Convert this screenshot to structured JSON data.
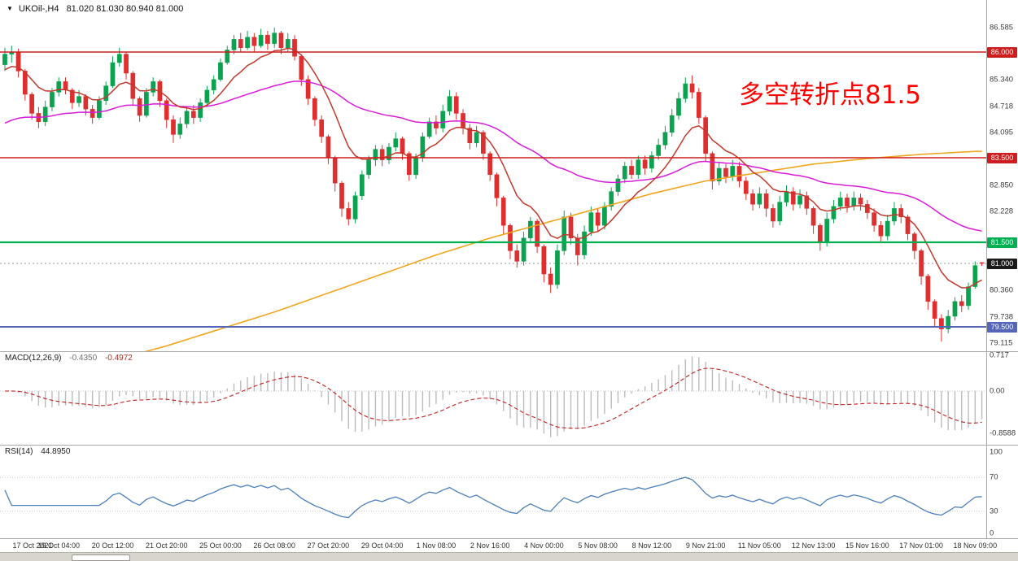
{
  "header": {
    "symbol": "UKOil-,H4",
    "ohlc_text": "81.020 81.030 80.940 81.000"
  },
  "annotation": {
    "text": "多空转折点81.5",
    "color": "#ff0000"
  },
  "axis": {
    "price_labels": [
      "86.585",
      "85.340",
      "84.718",
      "84.095",
      "82.850",
      "82.228",
      "80.360",
      "79.738",
      "79.115"
    ],
    "time_labels": [
      {
        "i": 0,
        "t": "17 Oct 2021"
      },
      {
        "i": 8,
        "t": "19 Oct 04:00"
      },
      {
        "i": 16,
        "t": "20 Oct 12:00"
      },
      {
        "i": 24,
        "t": "21 Oct 20:00"
      },
      {
        "i": 32,
        "t": "25 Oct 00:00"
      },
      {
        "i": 40,
        "t": "26 Oct 08:00"
      },
      {
        "i": 48,
        "t": "27 Oct 20:00"
      },
      {
        "i": 56,
        "t": "29 Oct 04:00"
      },
      {
        "i": 64,
        "t": "1 Nov 08:00"
      },
      {
        "i": 72,
        "t": "2 Nov 16:00"
      },
      {
        "i": 80,
        "t": "4 Nov 00:00"
      },
      {
        "i": 88,
        "t": "5 Nov 08:00"
      },
      {
        "i": 96,
        "t": "8 Nov 12:00"
      },
      {
        "i": 104,
        "t": "9 Nov 21:00"
      },
      {
        "i": 112,
        "t": "11 Nov 05:00"
      },
      {
        "i": 120,
        "t": "12 Nov 13:00"
      },
      {
        "i": 128,
        "t": "15 Nov 16:00"
      },
      {
        "i": 136,
        "t": "17 Nov 01:00"
      },
      {
        "i": 144,
        "t": "18 Nov 09:00"
      }
    ]
  },
  "levels": [
    {
      "label": "86.000",
      "value": 86.0,
      "color": "#cf1d1d",
      "width": 1.6
    },
    {
      "label": "83.500",
      "value": 83.5,
      "color": "#cf1d1d",
      "width": 1.6
    },
    {
      "label": "81.500",
      "value": 81.5,
      "color": "#00b050",
      "width": 2.2
    },
    {
      "label": "79.500",
      "value": 79.5,
      "color": "#5566b8",
      "width": 2.0
    }
  ],
  "current_price": {
    "label": "81.000",
    "value": 81.0,
    "badge_color": "#1a1a1a",
    "line_color": "#999999"
  },
  "chart_data": {
    "type": "candlestick",
    "symbol": "UKOil-",
    "timeframe": "H4",
    "ylim": [
      79.0,
      87.0
    ],
    "grid": false,
    "colors": {
      "up": "#0aa24f",
      "down": "#dd2f2f",
      "ma_fast": "#c0392b",
      "ma_mid": "#d81bd8",
      "ma_slow": "#efa51d",
      "macd_hist": "#bcbcbc",
      "macd_signal": "#c02020",
      "rsi_line": "#4a7ebb"
    },
    "candles": [
      [
        85.7,
        86.1,
        85.55,
        85.95
      ],
      [
        85.95,
        86.15,
        85.75,
        86.0
      ],
      [
        86.0,
        86.08,
        85.4,
        85.55
      ],
      [
        85.55,
        85.6,
        84.85,
        85.0
      ],
      [
        85.0,
        85.05,
        84.4,
        84.55
      ],
      [
        84.55,
        84.7,
        84.2,
        84.35
      ],
      [
        84.35,
        84.85,
        84.25,
        84.7
      ],
      [
        84.7,
        85.15,
        84.6,
        85.05
      ],
      [
        85.05,
        85.4,
        84.95,
        85.3
      ],
      [
        85.3,
        85.4,
        85.0,
        85.1
      ],
      [
        85.1,
        85.15,
        84.65,
        84.8
      ],
      [
        84.8,
        85.1,
        84.7,
        84.95
      ],
      [
        84.95,
        85.0,
        84.5,
        84.65
      ],
      [
        84.65,
        84.75,
        84.3,
        84.45
      ],
      [
        84.45,
        84.95,
        84.4,
        84.85
      ],
      [
        84.85,
        85.3,
        84.75,
        85.2
      ],
      [
        85.2,
        85.9,
        85.15,
        85.75
      ],
      [
        85.75,
        86.1,
        85.65,
        85.95
      ],
      [
        85.95,
        86.0,
        85.35,
        85.5
      ],
      [
        85.5,
        85.55,
        84.75,
        84.9
      ],
      [
        84.9,
        84.95,
        84.35,
        84.5
      ],
      [
        84.5,
        85.15,
        84.45,
        85.05
      ],
      [
        85.05,
        85.4,
        84.95,
        85.3
      ],
      [
        85.3,
        85.35,
        84.7,
        84.85
      ],
      [
        84.85,
        84.9,
        84.2,
        84.4
      ],
      [
        84.4,
        84.5,
        83.85,
        84.05
      ],
      [
        84.05,
        84.45,
        83.95,
        84.3
      ],
      [
        84.3,
        84.7,
        84.2,
        84.6
      ],
      [
        84.6,
        84.75,
        84.3,
        84.45
      ],
      [
        84.45,
        84.9,
        84.35,
        84.8
      ],
      [
        84.8,
        85.2,
        84.7,
        85.1
      ],
      [
        85.1,
        85.45,
        85.0,
        85.35
      ],
      [
        85.35,
        85.85,
        85.3,
        85.75
      ],
      [
        85.75,
        86.15,
        85.7,
        86.05
      ],
      [
        86.05,
        86.4,
        85.95,
        86.3
      ],
      [
        86.3,
        86.45,
        86.0,
        86.1
      ],
      [
        86.1,
        86.5,
        86.05,
        86.35
      ],
      [
        86.35,
        86.45,
        86.0,
        86.15
      ],
      [
        86.15,
        86.55,
        86.1,
        86.4
      ],
      [
        86.4,
        86.5,
        86.05,
        86.2
      ],
      [
        86.2,
        86.58,
        86.1,
        86.45
      ],
      [
        86.45,
        86.5,
        85.95,
        86.1
      ],
      [
        86.1,
        86.45,
        86.0,
        86.3
      ],
      [
        86.3,
        86.4,
        85.8,
        85.9
      ],
      [
        85.9,
        85.95,
        85.2,
        85.35
      ],
      [
        85.35,
        85.45,
        84.75,
        84.9
      ],
      [
        84.9,
        84.95,
        84.25,
        84.4
      ],
      [
        84.4,
        84.5,
        83.85,
        84.0
      ],
      [
        84.0,
        84.05,
        83.35,
        83.5
      ],
      [
        83.5,
        83.55,
        82.7,
        82.9
      ],
      [
        82.9,
        82.95,
        82.1,
        82.3
      ],
      [
        82.3,
        82.45,
        81.9,
        82.05
      ],
      [
        82.05,
        82.7,
        81.95,
        82.6
      ],
      [
        82.6,
        83.2,
        82.5,
        83.1
      ],
      [
        83.1,
        83.55,
        83.0,
        83.45
      ],
      [
        83.45,
        83.8,
        83.3,
        83.7
      ],
      [
        83.7,
        83.8,
        83.3,
        83.45
      ],
      [
        83.45,
        83.85,
        83.35,
        83.75
      ],
      [
        83.75,
        84.1,
        83.65,
        83.95
      ],
      [
        83.95,
        84.0,
        83.45,
        83.6
      ],
      [
        83.6,
        83.65,
        82.95,
        83.1
      ],
      [
        83.1,
        83.6,
        83.0,
        83.5
      ],
      [
        83.5,
        84.1,
        83.4,
        84.0
      ],
      [
        84.0,
        84.45,
        83.95,
        84.35
      ],
      [
        84.35,
        84.5,
        84.05,
        84.2
      ],
      [
        84.2,
        84.75,
        84.1,
        84.6
      ],
      [
        84.6,
        85.1,
        84.5,
        84.95
      ],
      [
        84.95,
        85.05,
        84.4,
        84.55
      ],
      [
        84.55,
        84.65,
        84.05,
        84.2
      ],
      [
        84.2,
        84.3,
        83.7,
        83.85
      ],
      [
        83.85,
        84.25,
        83.75,
        84.1
      ],
      [
        84.1,
        84.15,
        83.45,
        83.6
      ],
      [
        83.6,
        83.65,
        82.95,
        83.1
      ],
      [
        83.1,
        83.15,
        82.35,
        82.55
      ],
      [
        82.55,
        82.6,
        81.7,
        81.9
      ],
      [
        81.9,
        81.95,
        81.1,
        81.3
      ],
      [
        81.3,
        81.45,
        80.9,
        81.05
      ],
      [
        81.05,
        81.75,
        80.95,
        81.6
      ],
      [
        81.6,
        82.1,
        81.5,
        82.0
      ],
      [
        82.0,
        82.05,
        81.25,
        81.4
      ],
      [
        81.4,
        81.45,
        80.55,
        80.75
      ],
      [
        80.75,
        80.9,
        80.3,
        80.5
      ],
      [
        80.5,
        81.45,
        80.4,
        81.3
      ],
      [
        81.3,
        82.25,
        81.2,
        82.1
      ],
      [
        82.1,
        82.2,
        81.45,
        81.6
      ],
      [
        81.6,
        81.7,
        80.95,
        81.2
      ],
      [
        81.2,
        81.9,
        81.1,
        81.75
      ],
      [
        81.75,
        82.35,
        81.65,
        82.2
      ],
      [
        82.2,
        82.3,
        81.75,
        81.9
      ],
      [
        81.9,
        82.45,
        81.8,
        82.35
      ],
      [
        82.35,
        82.8,
        82.25,
        82.7
      ],
      [
        82.7,
        83.1,
        82.6,
        83.0
      ],
      [
        83.0,
        83.4,
        82.9,
        83.3
      ],
      [
        83.3,
        83.45,
        83.0,
        83.1
      ],
      [
        83.1,
        83.55,
        83.0,
        83.45
      ],
      [
        83.45,
        83.55,
        83.1,
        83.25
      ],
      [
        83.25,
        83.65,
        83.15,
        83.55
      ],
      [
        83.55,
        83.95,
        83.45,
        83.8
      ],
      [
        83.8,
        84.25,
        83.7,
        84.1
      ],
      [
        84.1,
        84.65,
        84.0,
        84.5
      ],
      [
        84.5,
        85.05,
        84.4,
        84.9
      ],
      [
        84.9,
        85.4,
        84.8,
        85.25
      ],
      [
        85.25,
        85.45,
        84.9,
        85.05
      ],
      [
        85.05,
        85.15,
        84.3,
        84.45
      ],
      [
        84.45,
        84.5,
        83.4,
        83.6
      ],
      [
        83.6,
        83.65,
        82.75,
        82.95
      ],
      [
        82.95,
        83.4,
        82.85,
        83.25
      ],
      [
        83.25,
        83.35,
        82.9,
        83.05
      ],
      [
        83.05,
        83.45,
        82.95,
        83.3
      ],
      [
        83.3,
        83.4,
        82.8,
        82.95
      ],
      [
        82.95,
        83.05,
        82.5,
        82.65
      ],
      [
        82.65,
        82.75,
        82.25,
        82.4
      ],
      [
        82.4,
        82.8,
        82.3,
        82.65
      ],
      [
        82.65,
        82.75,
        82.1,
        82.3
      ],
      [
        82.3,
        82.4,
        81.85,
        82.0
      ],
      [
        82.0,
        82.6,
        81.9,
        82.45
      ],
      [
        82.45,
        82.85,
        82.35,
        82.7
      ],
      [
        82.7,
        82.8,
        82.25,
        82.4
      ],
      [
        82.4,
        82.75,
        82.3,
        82.6
      ],
      [
        82.6,
        82.7,
        82.15,
        82.3
      ],
      [
        82.3,
        82.35,
        81.7,
        81.9
      ],
      [
        81.9,
        81.95,
        81.3,
        81.5
      ],
      [
        81.5,
        82.2,
        81.4,
        82.05
      ],
      [
        82.05,
        82.5,
        81.95,
        82.35
      ],
      [
        82.35,
        82.7,
        82.25,
        82.55
      ],
      [
        82.55,
        82.65,
        82.2,
        82.35
      ],
      [
        82.35,
        82.7,
        82.25,
        82.55
      ],
      [
        82.55,
        82.65,
        82.25,
        82.4
      ],
      [
        82.4,
        82.5,
        82.05,
        82.2
      ],
      [
        82.2,
        82.3,
        81.75,
        81.9
      ],
      [
        81.9,
        82.0,
        81.5,
        81.65
      ],
      [
        81.65,
        82.15,
        81.55,
        82.0
      ],
      [
        82.0,
        82.45,
        81.9,
        82.3
      ],
      [
        82.3,
        82.4,
        81.95,
        82.1
      ],
      [
        82.1,
        82.15,
        81.55,
        81.7
      ],
      [
        81.7,
        81.75,
        81.1,
        81.3
      ],
      [
        81.3,
        81.35,
        80.5,
        80.7
      ],
      [
        80.7,
        80.75,
        79.9,
        80.1
      ],
      [
        80.1,
        80.15,
        79.5,
        79.7
      ],
      [
        79.7,
        79.8,
        79.15,
        79.45
      ],
      [
        79.45,
        79.9,
        79.35,
        79.75
      ],
      [
        79.75,
        80.2,
        79.65,
        80.1
      ],
      [
        80.1,
        80.25,
        79.85,
        80.0
      ],
      [
        80.0,
        80.55,
        79.9,
        80.45
      ],
      [
        80.45,
        81.05,
        80.4,
        80.95
      ],
      [
        81.02,
        81.03,
        80.94,
        81.0
      ]
    ],
    "ma_fast_period": 10,
    "ma_mid_period": 48,
    "ma_slow_waypoints": {
      "step": 8,
      "values": [
        78.0,
        78.35,
        78.7,
        79.05,
        79.45,
        79.85,
        80.3,
        80.75,
        81.2,
        81.6,
        81.95,
        82.3,
        82.65,
        82.95,
        83.15,
        83.35,
        83.48,
        83.58,
        83.65
      ]
    },
    "macd": {
      "label": "MACD(12,26,9)",
      "value_main": "-0.4350",
      "value_signal": "-0.4972",
      "axis_labels": [
        "0.717",
        "0.00",
        "-0.8588"
      ],
      "axis_values": [
        0.717,
        0.0,
        -0.8588
      ]
    },
    "rsi": {
      "label": "RSI(14)",
      "value": "44.8950",
      "axis_labels": [
        "100",
        "70",
        "30",
        "0"
      ],
      "axis_values": [
        100,
        70,
        30,
        0
      ],
      "level_lines": [
        70,
        30
      ]
    }
  }
}
